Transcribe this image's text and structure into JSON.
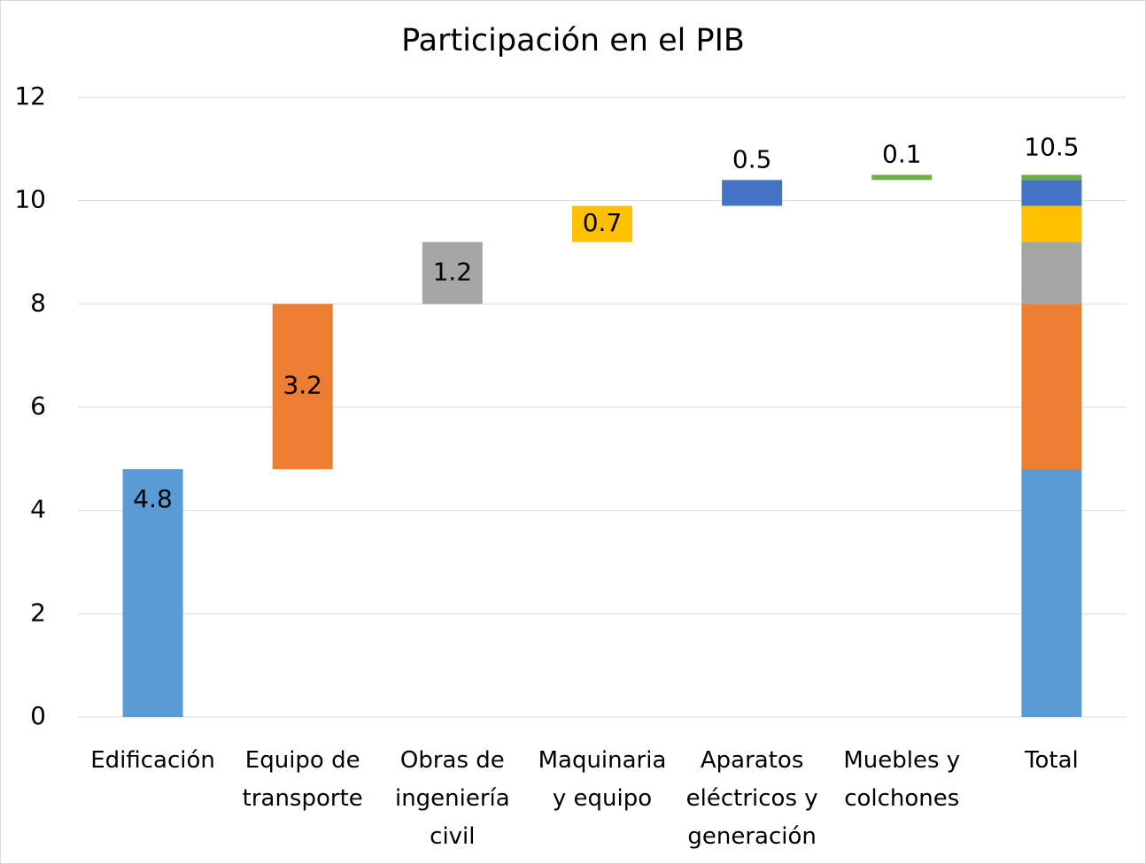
{
  "chart_data": {
    "type": "waterfall",
    "title": "Participación en el PIB",
    "categories": [
      "Edificación",
      "Equipo de transporte",
      "Obras de ingeniería civil",
      "Maquinaria y equipo",
      "Aparatos eléctricos y generación",
      "Muebles y colchones",
      "Total"
    ],
    "values": [
      4.8,
      3.2,
      1.2,
      0.7,
      0.5,
      0.1,
      10.5
    ],
    "colors": [
      "#5b9bd5",
      "#ed7d31",
      "#a5a5a5",
      "#ffc000",
      "#4472c4",
      "#70ad47"
    ],
    "ylim": [
      0,
      12
    ],
    "yticks": [
      0,
      2,
      4,
      6,
      8,
      10,
      12
    ],
    "grid": true
  }
}
